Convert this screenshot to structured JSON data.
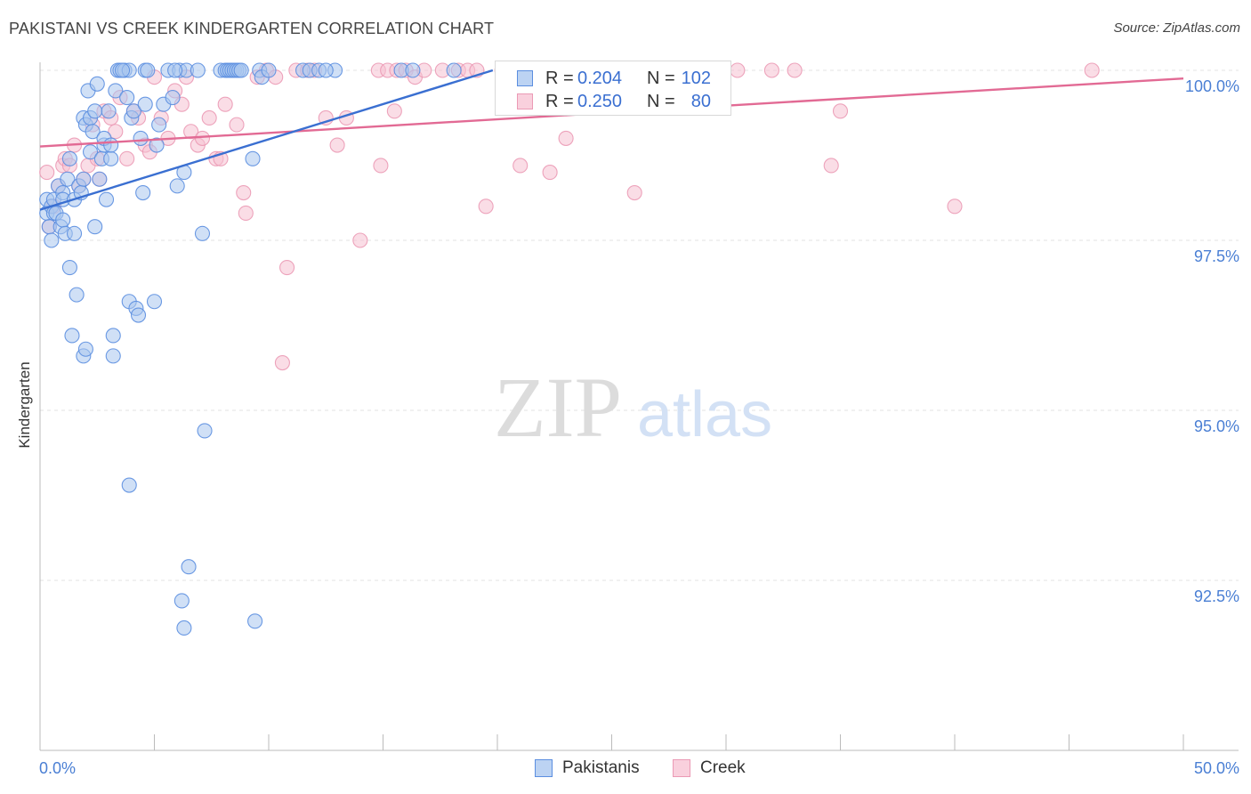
{
  "header": {
    "title": "PAKISTANI VS CREEK KINDERGARTEN CORRELATION CHART",
    "source": "Source: ZipAtlas.com"
  },
  "watermark": {
    "zip": "ZIP",
    "atlas": "atlas"
  },
  "colors": {
    "blue": "#3a6fd1",
    "blue_fill": "#a9c6ef",
    "blue_stroke": "#5b8ee0",
    "pink": "#e26a94",
    "pink_fill": "#f6c1d2",
    "pink_stroke": "#eb9ab5",
    "grid": "#e3e3e3",
    "axis": "#bbbbbb"
  },
  "legend": {
    "rows": [
      {
        "r_label": "R =",
        "r_value": "0.204",
        "n_label": "N =",
        "n_value": "102"
      },
      {
        "r_label": "R =",
        "r_value": "0.250",
        "n_label": "N =",
        "n_value": "80"
      }
    ]
  },
  "chart_data": {
    "type": "scatter",
    "title": "PAKISTANI VS CREEK KINDERGARTEN CORRELATION CHART",
    "xlabel": "",
    "ylabel": "Kindergarten",
    "xlim": [
      0,
      50
    ],
    "ylim": [
      90.0,
      100.45
    ],
    "x_tick_labels": [
      "0.0%",
      "50.0%"
    ],
    "y_ticks": [
      92.5,
      95.0,
      97.5,
      100.0
    ],
    "y_tick_labels": [
      "92.5%",
      "95.0%",
      "97.5%",
      "100.0%"
    ],
    "legend_position": "bottom-center",
    "series": [
      {
        "name": "Pakistanis",
        "r": 0.204,
        "n": 102,
        "trend": {
          "x": [
            0.0,
            19.8
          ],
          "y": [
            97.95,
            100.0
          ]
        },
        "points": [
          [
            0.3,
            97.9
          ],
          [
            0.3,
            98.1
          ],
          [
            0.4,
            97.7
          ],
          [
            0.5,
            97.5
          ],
          [
            0.5,
            98.0
          ],
          [
            0.6,
            97.9
          ],
          [
            0.6,
            98.1
          ],
          [
            0.7,
            97.9
          ],
          [
            0.8,
            98.3
          ],
          [
            0.9,
            97.7
          ],
          [
            1.0,
            98.2
          ],
          [
            1.0,
            98.1
          ],
          [
            1.0,
            97.8
          ],
          [
            1.1,
            97.6
          ],
          [
            1.2,
            98.4
          ],
          [
            1.3,
            98.7
          ],
          [
            1.3,
            97.1
          ],
          [
            1.4,
            96.1
          ],
          [
            1.5,
            98.1
          ],
          [
            1.5,
            97.6
          ],
          [
            1.6,
            96.7
          ],
          [
            1.7,
            98.3
          ],
          [
            1.8,
            98.2
          ],
          [
            1.9,
            95.8
          ],
          [
            1.9,
            98.4
          ],
          [
            1.9,
            99.3
          ],
          [
            2.0,
            99.2
          ],
          [
            2.0,
            95.9
          ],
          [
            2.1,
            99.7
          ],
          [
            2.2,
            98.8
          ],
          [
            2.2,
            99.3
          ],
          [
            2.3,
            99.1
          ],
          [
            2.4,
            99.4
          ],
          [
            2.4,
            97.7
          ],
          [
            2.5,
            99.8
          ],
          [
            2.6,
            98.4
          ],
          [
            2.7,
            98.7
          ],
          [
            2.8,
            98.9
          ],
          [
            2.8,
            99.0
          ],
          [
            2.9,
            98.1
          ],
          [
            3.0,
            99.4
          ],
          [
            3.1,
            98.7
          ],
          [
            3.1,
            98.9
          ],
          [
            3.2,
            96.1
          ],
          [
            3.2,
            95.8
          ],
          [
            3.3,
            99.7
          ],
          [
            3.4,
            100.0
          ],
          [
            3.5,
            100.0
          ],
          [
            3.7,
            100.0
          ],
          [
            3.8,
            99.6
          ],
          [
            3.9,
            100.0
          ],
          [
            3.9,
            96.6
          ],
          [
            3.9,
            93.9
          ],
          [
            4.0,
            99.3
          ],
          [
            4.1,
            99.4
          ],
          [
            4.2,
            96.5
          ],
          [
            4.3,
            96.4
          ],
          [
            4.4,
            99.0
          ],
          [
            4.5,
            98.2
          ],
          [
            4.6,
            99.5
          ],
          [
            4.6,
            100.0
          ],
          [
            4.7,
            100.0
          ],
          [
            5.0,
            96.6
          ],
          [
            5.1,
            98.9
          ],
          [
            5.2,
            99.2
          ],
          [
            5.4,
            99.5
          ],
          [
            5.6,
            100.0
          ],
          [
            5.8,
            99.6
          ],
          [
            6.0,
            98.3
          ],
          [
            6.1,
            100.0
          ],
          [
            6.2,
            92.2
          ],
          [
            6.3,
            91.8
          ],
          [
            6.3,
            98.5
          ],
          [
            6.4,
            100.0
          ],
          [
            6.5,
            92.7
          ],
          [
            6.9,
            100.0
          ],
          [
            7.1,
            97.6
          ],
          [
            7.2,
            94.7
          ],
          [
            7.9,
            100.0
          ],
          [
            8.1,
            100.0
          ],
          [
            8.2,
            100.0
          ],
          [
            8.3,
            100.0
          ],
          [
            8.4,
            100.0
          ],
          [
            8.5,
            100.0
          ],
          [
            8.6,
            100.0
          ],
          [
            8.7,
            100.0
          ],
          [
            8.8,
            100.0
          ],
          [
            9.3,
            98.7
          ],
          [
            9.4,
            91.9
          ],
          [
            9.6,
            100.0
          ],
          [
            9.7,
            99.9
          ],
          [
            10.0,
            100.0
          ],
          [
            11.5,
            100.0
          ],
          [
            11.8,
            100.0
          ],
          [
            12.2,
            100.0
          ],
          [
            12.9,
            100.0
          ],
          [
            15.8,
            100.0
          ],
          [
            16.3,
            100.0
          ],
          [
            18.1,
            100.0
          ],
          [
            12.5,
            100.0
          ],
          [
            3.6,
            100.0
          ],
          [
            5.9,
            100.0
          ]
        ]
      },
      {
        "name": "Creek",
        "r": 0.25,
        "n": 80,
        "trend": {
          "x": [
            0.0,
            50.0
          ],
          "y": [
            98.88,
            99.88
          ]
        },
        "points": [
          [
            0.3,
            98.5
          ],
          [
            0.4,
            97.7
          ],
          [
            0.6,
            98.0
          ],
          [
            0.8,
            98.3
          ],
          [
            1.0,
            98.6
          ],
          [
            1.1,
            98.7
          ],
          [
            1.3,
            98.6
          ],
          [
            1.5,
            98.9
          ],
          [
            1.7,
            98.3
          ],
          [
            1.9,
            98.4
          ],
          [
            2.1,
            98.6
          ],
          [
            2.3,
            99.2
          ],
          [
            2.5,
            98.7
          ],
          [
            2.6,
            98.4
          ],
          [
            2.8,
            99.4
          ],
          [
            3.1,
            99.3
          ],
          [
            3.3,
            99.1
          ],
          [
            3.5,
            99.6
          ],
          [
            3.8,
            98.7
          ],
          [
            4.1,
            99.4
          ],
          [
            4.3,
            99.3
          ],
          [
            4.6,
            98.9
          ],
          [
            4.8,
            98.8
          ],
          [
            5.0,
            99.9
          ],
          [
            5.3,
            99.3
          ],
          [
            5.6,
            99.0
          ],
          [
            5.9,
            99.7
          ],
          [
            6.2,
            99.5
          ],
          [
            6.4,
            99.9
          ],
          [
            6.6,
            99.1
          ],
          [
            6.9,
            98.9
          ],
          [
            7.1,
            99.0
          ],
          [
            7.4,
            99.3
          ],
          [
            7.7,
            98.7
          ],
          [
            7.9,
            98.7
          ],
          [
            8.1,
            99.5
          ],
          [
            8.6,
            99.2
          ],
          [
            8.9,
            98.2
          ],
          [
            9.0,
            97.9
          ],
          [
            9.5,
            99.9
          ],
          [
            9.9,
            100.0
          ],
          [
            10.3,
            99.9
          ],
          [
            10.6,
            95.7
          ],
          [
            10.8,
            97.1
          ],
          [
            11.2,
            100.0
          ],
          [
            11.7,
            100.0
          ],
          [
            12.0,
            100.0
          ],
          [
            12.5,
            99.3
          ],
          [
            13.0,
            98.9
          ],
          [
            13.4,
            99.3
          ],
          [
            14.0,
            97.5
          ],
          [
            14.8,
            100.0
          ],
          [
            14.9,
            98.6
          ],
          [
            15.2,
            100.0
          ],
          [
            15.6,
            100.0
          ],
          [
            16.0,
            100.0
          ],
          [
            15.5,
            99.4
          ],
          [
            16.4,
            99.9
          ],
          [
            16.8,
            100.0
          ],
          [
            17.6,
            100.0
          ],
          [
            18.3,
            100.0
          ],
          [
            18.7,
            100.0
          ],
          [
            19.1,
            100.0
          ],
          [
            19.5,
            98.0
          ],
          [
            20.2,
            100.0
          ],
          [
            21.0,
            98.6
          ],
          [
            21.4,
            100.0
          ],
          [
            22.3,
            98.5
          ],
          [
            23.0,
            99.0
          ],
          [
            24.0,
            100.0
          ],
          [
            25.0,
            100.0
          ],
          [
            25.5,
            100.0
          ],
          [
            26.0,
            98.2
          ],
          [
            30.5,
            100.0
          ],
          [
            32.0,
            100.0
          ],
          [
            33.0,
            100.0
          ],
          [
            34.6,
            98.6
          ],
          [
            35.0,
            99.4
          ],
          [
            40.0,
            98.0
          ],
          [
            46.0,
            100.0
          ]
        ]
      }
    ]
  }
}
